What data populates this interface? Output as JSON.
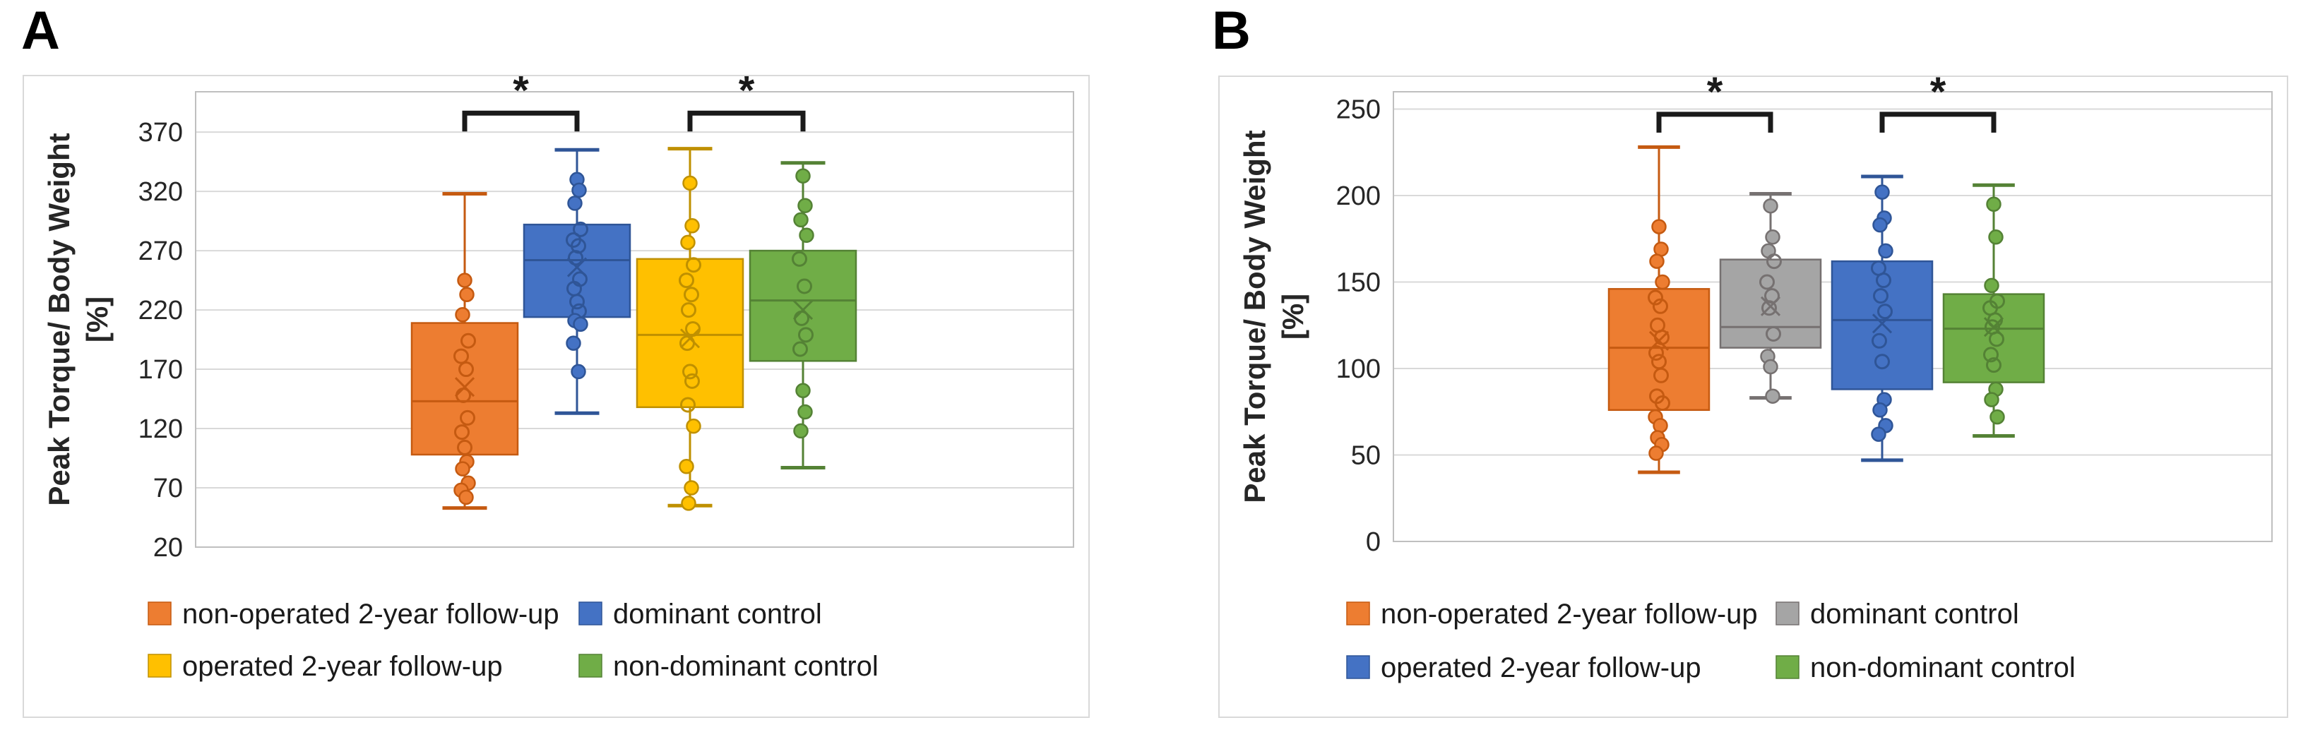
{
  "figure": {
    "background": "#FFFFFF",
    "text_color": "#262626",
    "grid_color": "#D9D9D9",
    "plot_border_color": "#BFBFBF",
    "frame_border_color": "#D9D9D9",
    "bracket_color": "#1A1A1A"
  },
  "chart_data": [
    {
      "type": "boxplot",
      "panel_label": "A",
      "ylabel": "Peak Torque/ Body Weight",
      "ylabel_unit": "[%]",
      "ylim": [
        20,
        404
      ],
      "yticks": [
        370,
        320,
        270,
        220,
        170,
        120,
        70,
        20
      ],
      "grid": true,
      "legend_position": "bottom",
      "series": [
        {
          "name": "non-operated 2-year follow-up",
          "color": "#ED7D31",
          "border": "#C55A11",
          "whisker_low": 53,
          "q1": 98,
          "median": 143,
          "mean": 155,
          "q3": 209,
          "whisker_high": 318,
          "points": [
            245,
            233,
            216,
            194,
            181,
            170,
            148,
            129,
            117,
            104,
            92,
            86,
            74,
            68,
            62
          ]
        },
        {
          "name": "dominant control",
          "color": "#4472C4",
          "border": "#2F5597",
          "whisker_low": 133,
          "q1": 214,
          "median": 262,
          "mean": 256,
          "q3": 292,
          "whisker_high": 355,
          "points": [
            330,
            321,
            310,
            288,
            279,
            274,
            264,
            246,
            238,
            227,
            219,
            211,
            208,
            192,
            168
          ]
        },
        {
          "name": "operated 2-year follow-up",
          "color": "#FFC000",
          "border": "#BF9000",
          "whisker_low": 55,
          "q1": 138,
          "median": 199,
          "mean": 196,
          "q3": 263,
          "whisker_high": 356,
          "points": [
            327,
            291,
            277,
            258,
            245,
            233,
            220,
            204,
            192,
            168,
            160,
            140,
            122,
            88,
            70,
            57
          ]
        },
        {
          "name": "non-dominant control",
          "color": "#70AD47",
          "border": "#548235",
          "whisker_low": 87,
          "q1": 177,
          "median": 228,
          "mean": 220,
          "q3": 270,
          "whisker_high": 344,
          "points": [
            333,
            308,
            296,
            283,
            263,
            240,
            213,
            199,
            187,
            152,
            134,
            118
          ]
        }
      ],
      "significance": [
        {
          "between": [
            0,
            1
          ],
          "label": "*",
          "bar_y": 386
        },
        {
          "between": [
            2,
            3
          ],
          "label": "*",
          "bar_y": 386
        }
      ]
    },
    {
      "type": "boxplot",
      "panel_label": "B",
      "ylabel": "Peak Torque/ Body Weight",
      "ylabel_unit": "[%]",
      "ylim": [
        0,
        260
      ],
      "yticks": [
        250,
        200,
        150,
        100,
        50,
        0
      ],
      "grid": true,
      "legend_position": "bottom",
      "series": [
        {
          "name": "non-operated 2-year follow-up",
          "color": "#ED7D31",
          "border": "#C55A11",
          "whisker_low": 40,
          "q1": 76,
          "median": 112,
          "mean": 116,
          "q3": 146,
          "whisker_high": 228,
          "points": [
            182,
            169,
            162,
            150,
            141,
            136,
            125,
            118,
            109,
            104,
            96,
            84,
            80,
            72,
            67,
            60,
            56,
            51
          ]
        },
        {
          "name": "dominant control",
          "color": "#A5A5A5",
          "border": "#767171",
          "whisker_low": 83,
          "q1": 112,
          "median": 124,
          "mean": 136,
          "q3": 163,
          "whisker_high": 201,
          "points": [
            194,
            176,
            168,
            162,
            150,
            142,
            135,
            120,
            107,
            101,
            84
          ]
        },
        {
          "name": "operated 2-year follow-up",
          "color": "#4472C4",
          "border": "#2F5597",
          "whisker_low": 47,
          "q1": 88,
          "median": 128,
          "mean": 126,
          "q3": 162,
          "whisker_high": 211,
          "points": [
            202,
            187,
            183,
            168,
            158,
            151,
            142,
            133,
            116,
            104,
            82,
            76,
            67,
            62
          ]
        },
        {
          "name": "non-dominant control",
          "color": "#70AD47",
          "border": "#548235",
          "whisker_low": 61,
          "q1": 92,
          "median": 123,
          "mean": 124,
          "q3": 143,
          "whisker_high": 206,
          "points": [
            195,
            176,
            148,
            139,
            135,
            128,
            124,
            117,
            108,
            102,
            88,
            82,
            72
          ]
        }
      ],
      "significance": [
        {
          "between": [
            0,
            1
          ],
          "label": "*",
          "bar_y": 247
        },
        {
          "between": [
            2,
            3
          ],
          "label": "*",
          "bar_y": 247
        }
      ]
    }
  ]
}
